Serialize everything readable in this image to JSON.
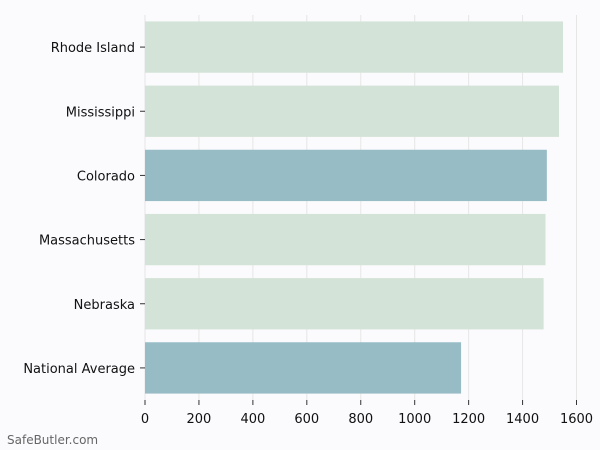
{
  "chart_data": {
    "type": "bar",
    "orientation": "horizontal",
    "categories": [
      "Rhode Island",
      "Mississippi",
      "Colorado",
      "Massachusetts",
      "Nebraska",
      "National Average"
    ],
    "values": [
      1550,
      1535,
      1490,
      1485,
      1478,
      1172
    ],
    "highlighted": [
      "Colorado",
      "National Average"
    ],
    "xlim": [
      0,
      1650
    ],
    "xticks": [
      0,
      200,
      400,
      600,
      800,
      1000,
      1200,
      1400,
      1600
    ],
    "grid": true,
    "legend": "none",
    "colors": {
      "default": "#d4e3d8",
      "highlight": "#97bcc5",
      "grid": "#e6e6e6",
      "axis": "#333333"
    }
  },
  "watermark": "SafeButler.com"
}
